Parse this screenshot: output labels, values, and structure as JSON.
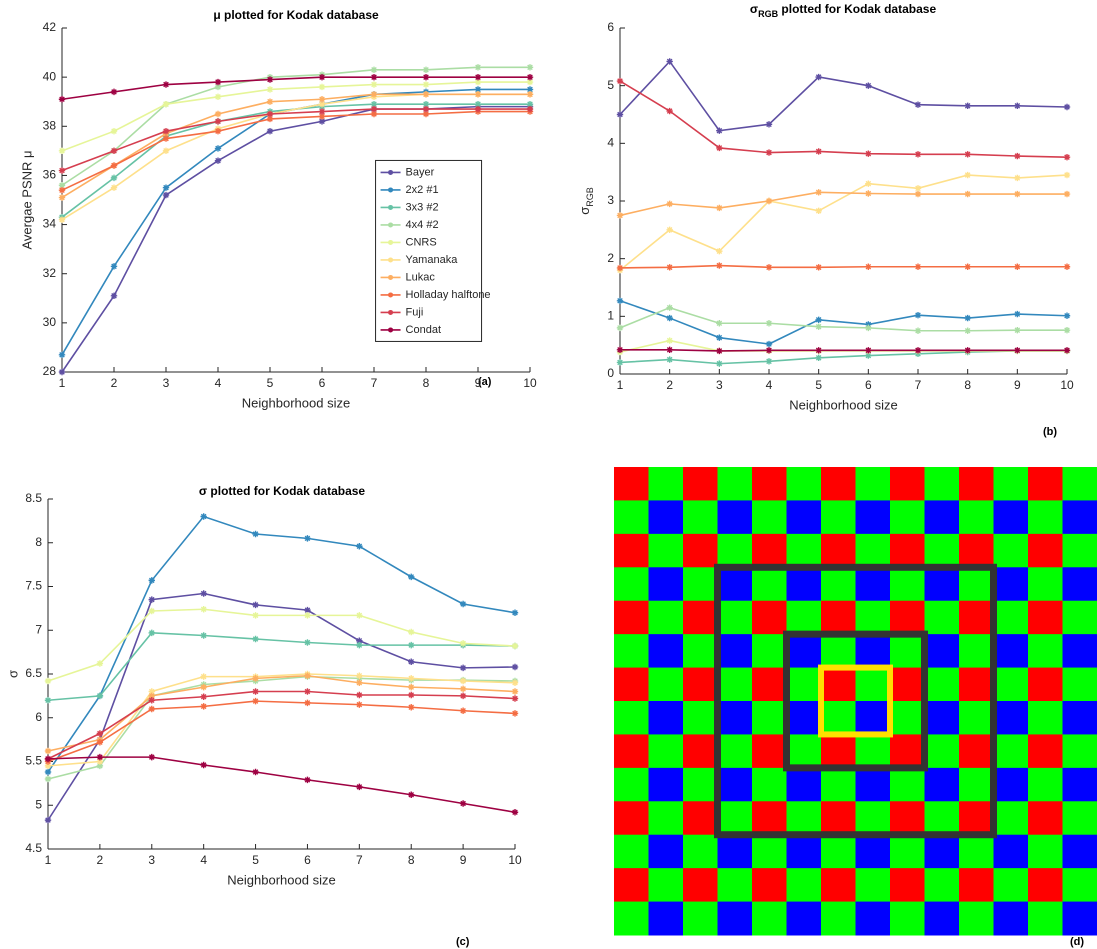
{
  "chart_data": [
    {
      "type": "line",
      "title": "μ plotted for Kodak database",
      "xlabel": "Neighborhood size",
      "ylabel": "Avergae PSNR μ",
      "x": [
        1,
        2,
        3,
        4,
        5,
        6,
        7,
        8,
        9,
        10
      ],
      "xlim": [
        1,
        10
      ],
      "xticks": [
        1,
        2,
        3,
        4,
        5,
        6,
        7,
        8,
        9,
        10
      ],
      "ylim": [
        28,
        42
      ],
      "yticks": [
        28,
        30,
        32,
        34,
        36,
        38,
        40,
        42
      ],
      "grid": false,
      "legend": "east",
      "series": [
        {
          "name": "Bayer",
          "color": "#5e4fa2",
          "values": [
            28.0,
            31.1,
            35.2,
            36.6,
            37.8,
            38.2,
            38.7,
            38.7,
            38.8,
            38.8
          ]
        },
        {
          "name": "2x2 #1",
          "color": "#3288bd",
          "values": [
            28.7,
            32.3,
            35.5,
            37.1,
            38.5,
            38.9,
            39.3,
            39.4,
            39.5,
            39.5
          ]
        },
        {
          "name": "3x3 #2",
          "color": "#66c2a5",
          "values": [
            34.3,
            35.9,
            37.6,
            38.2,
            38.6,
            38.8,
            38.9,
            38.9,
            38.9,
            38.9
          ]
        },
        {
          "name": "4x4 #2",
          "color": "#abdda4",
          "values": [
            35.6,
            37.0,
            38.9,
            39.6,
            40.0,
            40.1,
            40.3,
            40.3,
            40.4,
            40.4
          ]
        },
        {
          "name": "CNRS",
          "color": "#e6f598",
          "values": [
            37.0,
            37.8,
            38.9,
            39.2,
            39.5,
            39.6,
            39.7,
            39.7,
            39.8,
            39.8
          ]
        },
        {
          "name": "Yamanaka",
          "color": "#fee08b",
          "values": [
            34.2,
            35.5,
            37.0,
            37.9,
            38.5,
            38.9,
            39.2,
            39.3,
            39.3,
            39.3
          ]
        },
        {
          "name": "Lukac",
          "color": "#fdae61",
          "values": [
            35.1,
            36.4,
            37.7,
            38.5,
            39.0,
            39.1,
            39.3,
            39.3,
            39.3,
            39.3
          ]
        },
        {
          "name": "Holladay halftone",
          "color": "#f46d43",
          "values": [
            35.4,
            36.4,
            37.5,
            37.8,
            38.3,
            38.4,
            38.5,
            38.5,
            38.6,
            38.6
          ]
        },
        {
          "name": "Fuji",
          "color": "#d53e4f",
          "values": [
            36.2,
            37.0,
            37.8,
            38.2,
            38.5,
            38.6,
            38.7,
            38.7,
            38.7,
            38.7
          ]
        },
        {
          "name": "Condat",
          "color": "#9e0142",
          "values": [
            39.1,
            39.4,
            39.7,
            39.8,
            39.9,
            40.0,
            40.0,
            40.0,
            40.0,
            40.0
          ]
        }
      ]
    },
    {
      "type": "line",
      "title": [
        "σ",
        "RGB",
        " plotted for Kodak database"
      ],
      "xlabel": "Neighborhood size",
      "ylabel": [
        "σ",
        "RGB"
      ],
      "x": [
        1,
        2,
        3,
        4,
        5,
        6,
        7,
        8,
        9,
        10
      ],
      "xlim": [
        1,
        10
      ],
      "xticks": [
        1,
        2,
        3,
        4,
        5,
        6,
        7,
        8,
        9,
        10
      ],
      "ylim": [
        0,
        6
      ],
      "yticks": [
        0,
        1,
        2,
        3,
        4,
        5,
        6
      ],
      "grid": false,
      "series": [
        {
          "name": "Bayer",
          "color": "#5e4fa2",
          "values": [
            4.5,
            5.42,
            4.22,
            4.33,
            5.15,
            5.0,
            4.67,
            4.65,
            4.65,
            4.63
          ]
        },
        {
          "name": "2x2 #1",
          "color": "#3288bd",
          "values": [
            1.27,
            0.97,
            0.63,
            0.52,
            0.94,
            0.86,
            1.02,
            0.97,
            1.04,
            1.01
          ]
        },
        {
          "name": "3x3 #2",
          "color": "#66c2a5",
          "values": [
            0.2,
            0.25,
            0.18,
            0.22,
            0.28,
            0.32,
            0.35,
            0.38,
            0.4,
            0.4
          ]
        },
        {
          "name": "4x4 #2",
          "color": "#abdda4",
          "values": [
            0.8,
            1.15,
            0.88,
            0.88,
            0.82,
            0.8,
            0.75,
            0.75,
            0.76,
            0.76
          ]
        },
        {
          "name": "CNRS",
          "color": "#e6f598",
          "values": [
            0.38,
            0.58,
            0.4,
            0.4,
            0.4,
            0.4,
            0.4,
            0.4,
            0.4,
            0.4
          ]
        },
        {
          "name": "Yamanaka",
          "color": "#fee08b",
          "values": [
            1.8,
            2.5,
            2.13,
            3.0,
            2.83,
            3.3,
            3.22,
            3.45,
            3.4,
            3.45
          ]
        },
        {
          "name": "Lukac",
          "color": "#fdae61",
          "values": [
            2.75,
            2.95,
            2.88,
            3.0,
            3.15,
            3.13,
            3.12,
            3.12,
            3.12,
            3.12
          ]
        },
        {
          "name": "Holladay halftone",
          "color": "#f46d43",
          "values": [
            1.84,
            1.85,
            1.88,
            1.85,
            1.85,
            1.86,
            1.86,
            1.86,
            1.86,
            1.86
          ]
        },
        {
          "name": "Fuji",
          "color": "#d53e4f",
          "values": [
            5.08,
            4.56,
            3.92,
            3.84,
            3.86,
            3.82,
            3.81,
            3.81,
            3.78,
            3.76
          ]
        },
        {
          "name": "Condat",
          "color": "#9e0142",
          "values": [
            0.42,
            0.42,
            0.4,
            0.41,
            0.41,
            0.41,
            0.41,
            0.41,
            0.41,
            0.41
          ]
        }
      ]
    },
    {
      "type": "line",
      "title": "σ plotted for Kodak database",
      "xlabel": "Neighborhood size",
      "ylabel": "σ",
      "x": [
        1,
        2,
        3,
        4,
        5,
        6,
        7,
        8,
        9,
        10
      ],
      "xlim": [
        1,
        10
      ],
      "xticks": [
        1,
        2,
        3,
        4,
        5,
        6,
        7,
        8,
        9,
        10
      ],
      "ylim": [
        4.5,
        8.5
      ],
      "yticks": [
        4.5,
        5,
        5.5,
        6,
        6.5,
        7,
        7.5,
        8,
        8.5
      ],
      "grid": false,
      "series": [
        {
          "name": "Bayer",
          "color": "#5e4fa2",
          "values": [
            4.83,
            5.75,
            7.35,
            7.42,
            7.29,
            7.23,
            6.88,
            6.64,
            6.57,
            6.58
          ]
        },
        {
          "name": "2x2 #1",
          "color": "#3288bd",
          "values": [
            5.38,
            6.25,
            7.57,
            8.3,
            8.1,
            8.05,
            7.96,
            7.61,
            7.3,
            7.2
          ]
        },
        {
          "name": "3x3 #2",
          "color": "#66c2a5",
          "values": [
            6.2,
            6.25,
            6.97,
            6.94,
            6.9,
            6.86,
            6.83,
            6.83,
            6.83,
            6.82
          ]
        },
        {
          "name": "4x4 #2",
          "color": "#abdda4",
          "values": [
            5.3,
            5.45,
            6.25,
            6.38,
            6.42,
            6.47,
            6.45,
            6.43,
            6.43,
            6.42
          ]
        },
        {
          "name": "CNRS",
          "color": "#e6f598",
          "values": [
            6.42,
            6.62,
            7.22,
            7.24,
            7.17,
            7.17,
            7.17,
            6.98,
            6.85,
            6.82
          ]
        },
        {
          "name": "Yamanaka",
          "color": "#fee08b",
          "values": [
            5.45,
            5.5,
            6.3,
            6.47,
            6.47,
            6.5,
            6.48,
            6.45,
            6.42,
            6.4
          ]
        },
        {
          "name": "Lukac",
          "color": "#fdae61",
          "values": [
            5.62,
            5.75,
            6.25,
            6.35,
            6.45,
            6.48,
            6.4,
            6.35,
            6.33,
            6.3
          ]
        },
        {
          "name": "Holladay halftone",
          "color": "#f46d43",
          "values": [
            5.5,
            5.72,
            6.1,
            6.13,
            6.19,
            6.17,
            6.15,
            6.12,
            6.08,
            6.05
          ]
        },
        {
          "name": "Fuji",
          "color": "#d53e4f",
          "values": [
            5.53,
            5.82,
            6.2,
            6.24,
            6.3,
            6.3,
            6.26,
            6.26,
            6.25,
            6.22
          ]
        },
        {
          "name": "Condat",
          "color": "#9e0142",
          "values": [
            5.53,
            5.55,
            5.55,
            5.46,
            5.38,
            5.29,
            5.21,
            5.12,
            5.02,
            4.92
          ]
        }
      ]
    }
  ],
  "panel_labels": [
    "(a)",
    "(b)",
    "(c)",
    "(d)"
  ]
}
